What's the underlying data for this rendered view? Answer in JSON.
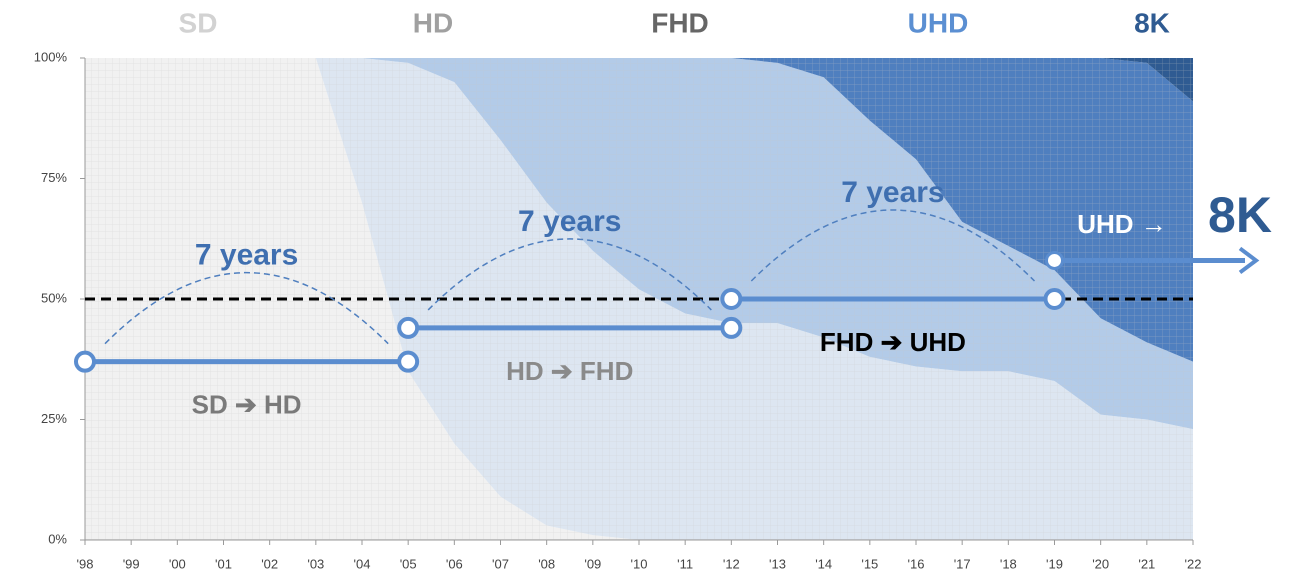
{
  "chart_data": {
    "type": "stacked_area",
    "categories": [
      "'98",
      "'99",
      "'00",
      "'01",
      "'02",
      "'03",
      "'04",
      "'05",
      "'06",
      "'07",
      "'08",
      "'09",
      "'10",
      "'11",
      "'12",
      "'13",
      "'14",
      "'15",
      "'16",
      "'17",
      "'18",
      "'19",
      "'20",
      "'21",
      "'22"
    ],
    "series": [
      {
        "name": "SD",
        "color": "#f1f1f1",
        "values": [
          100,
          100,
          100,
          100,
          100,
          100,
          70,
          35,
          20,
          9,
          3,
          1,
          0,
          0,
          0,
          0,
          0,
          0,
          0,
          0,
          0,
          0,
          0,
          0,
          0
        ]
      },
      {
        "name": "HD",
        "color": "#dde6f1",
        "values": [
          0,
          0,
          0,
          0,
          0,
          0,
          30,
          64,
          75,
          74,
          67,
          59,
          52,
          47,
          45,
          45,
          42,
          38,
          36,
          35,
          35,
          33,
          26,
          25,
          23
        ]
      },
      {
        "name": "FHD",
        "color": "#b3cbe8",
        "values": [
          0,
          0,
          0,
          0,
          0,
          0,
          0,
          1,
          5,
          17,
          30,
          40,
          48,
          53,
          55,
          54,
          54,
          49,
          43,
          31,
          26,
          23,
          20,
          16,
          14
        ]
      },
      {
        "name": "UHD",
        "color": "#4f7fbf",
        "values": [
          0,
          0,
          0,
          0,
          0,
          0,
          0,
          0,
          0,
          0,
          0,
          0,
          0,
          0,
          0,
          1,
          4,
          13,
          21,
          34,
          39,
          44,
          54,
          58,
          54
        ]
      },
      {
        "name": "8K",
        "color": "#2f5b92",
        "values": [
          0,
          0,
          0,
          0,
          0,
          0,
          0,
          0,
          0,
          0,
          0,
          0,
          0,
          0,
          0,
          0,
          0,
          0,
          0,
          0,
          0,
          0,
          0,
          1,
          9
        ]
      }
    ],
    "ylim": [
      0,
      100
    ],
    "yticks": [
      {
        "value": 0,
        "label": "0%"
      },
      {
        "value": 25,
        "label": "25%"
      },
      {
        "value": 50,
        "label": "50%"
      },
      {
        "value": 75,
        "label": "75%"
      },
      {
        "value": 100,
        "label": "100%"
      }
    ],
    "grid": true,
    "reference_line": 50,
    "transitions": [
      {
        "label": "SD ➔ HD",
        "span_label": "7 years",
        "from": "'98",
        "to": "'05",
        "y": 37
      },
      {
        "label": "HD ➔ FHD",
        "span_label": "7 years",
        "from": "'05",
        "to": "'12",
        "y": 44
      },
      {
        "label": "FHD ➔ UHD",
        "span_label": "7 years",
        "from": "'12",
        "to": "'19",
        "y": 50
      }
    ],
    "next_transition": {
      "label": "UHD →",
      "target": "8K",
      "from": "'19",
      "y": 58
    }
  }
}
